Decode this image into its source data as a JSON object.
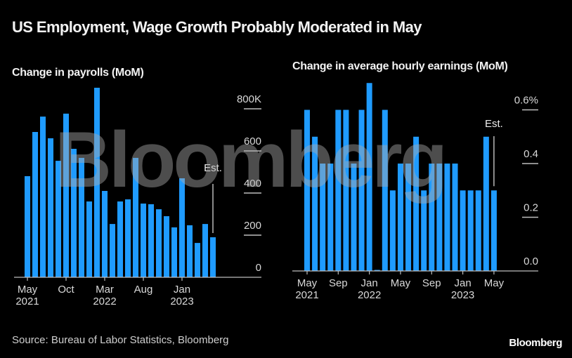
{
  "title": "US Employment, Wage Growth Probably Moderated in May",
  "footer": {
    "source": "Source: Bureau of Labor Statistics, Bloomberg",
    "logo": "Bloomberg"
  },
  "watermark": "Bloomberg",
  "colors": {
    "bar": "#1f9bff",
    "axis": "#bdbdbd",
    "text": "#d9d9d9",
    "background": "#000000"
  },
  "chart_data": [
    {
      "type": "bar",
      "title": "Change in payrolls (MoM)",
      "xlabel": "",
      "ylabel": "",
      "ylim": [
        0,
        800
      ],
      "unit_suffix": "K",
      "yticks": [
        0,
        200,
        400,
        600,
        800
      ],
      "ytick_labels": [
        "0",
        "200",
        "400",
        "600",
        "800K"
      ],
      "categories": [
        "May 2021",
        "Jun 2021",
        "Jul 2021",
        "Aug 2021",
        "Sep 2021",
        "Oct 2021",
        "Nov 2021",
        "Dec 2021",
        "Jan 2022",
        "Feb 2022",
        "Mar 2022",
        "Apr 2022",
        "May 2022",
        "Jun 2022",
        "Jul 2022",
        "Aug 2022",
        "Sep 2022",
        "Oct 2022",
        "Nov 2022",
        "Dec 2022",
        "Jan 2023",
        "Feb 2023",
        "Mar 2023",
        "Apr 2023",
        "May 2023"
      ],
      "values": [
        480,
        690,
        763,
        660,
        553,
        777,
        610,
        567,
        360,
        900,
        410,
        253,
        360,
        370,
        567,
        350,
        347,
        323,
        290,
        237,
        470,
        247,
        163,
        253,
        190
      ],
      "xticks": [
        {
          "index": 0,
          "label": "May",
          "year": "2021"
        },
        {
          "index": 5,
          "label": "Oct",
          "year": ""
        },
        {
          "index": 10,
          "label": "Mar",
          "year": "2022"
        },
        {
          "index": 15,
          "label": "Aug",
          "year": ""
        },
        {
          "index": 20,
          "label": "Jan",
          "year": "2023"
        }
      ],
      "annotation": {
        "index": 24,
        "text": "Est."
      },
      "grid": true
    },
    {
      "type": "bar",
      "title": "Change in average hourly earnings (MoM)",
      "xlabel": "",
      "ylabel": "",
      "ylim": [
        0,
        0.6
      ],
      "unit_suffix": "%",
      "yticks": [
        0,
        0.2,
        0.4,
        0.6
      ],
      "ytick_labels": [
        "0.0",
        "0.2",
        "0.4",
        "0.6%"
      ],
      "categories": [
        "May 2021",
        "Jun 2021",
        "Jul 2021",
        "Aug 2021",
        "Sep 2021",
        "Oct 2021",
        "Nov 2021",
        "Dec 2021",
        "Jan 2022",
        "Feb 2022",
        "Mar 2022",
        "Apr 2022",
        "May 2022",
        "Jun 2022",
        "Jul 2022",
        "Aug 2022",
        "Sep 2022",
        "Oct 2022",
        "Nov 2022",
        "Dec 2022",
        "Jan 2023",
        "Feb 2023",
        "Mar 2023",
        "Apr 2023",
        "May 2023"
      ],
      "values": [
        0.6,
        0.5,
        0.4,
        0.4,
        0.6,
        0.6,
        0.4,
        0.6,
        0.7,
        0.0,
        0.6,
        0.3,
        0.4,
        0.4,
        0.5,
        0.3,
        0.4,
        0.4,
        0.4,
        0.4,
        0.3,
        0.3,
        0.3,
        0.5,
        0.3
      ],
      "xticks": [
        {
          "index": 0,
          "label": "May",
          "year": "2021"
        },
        {
          "index": 4,
          "label": "Sep",
          "year": ""
        },
        {
          "index": 8,
          "label": "Jan",
          "year": "2022"
        },
        {
          "index": 12,
          "label": "May",
          "year": ""
        },
        {
          "index": 16,
          "label": "Sep",
          "year": ""
        },
        {
          "index": 20,
          "label": "Jan",
          "year": "2023"
        },
        {
          "index": 24,
          "label": "May",
          "year": ""
        }
      ],
      "annotation": {
        "index": 24,
        "text": "Est."
      },
      "grid": true
    }
  ]
}
